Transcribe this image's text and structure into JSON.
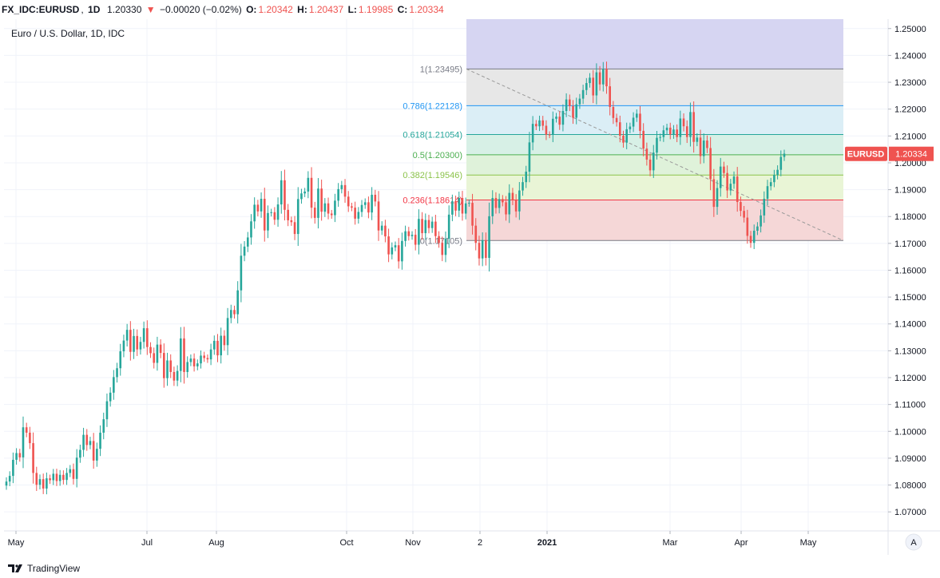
{
  "header": {
    "symbol": "FX_IDC:EURUSD",
    "interval": "1D",
    "last": "1.20330",
    "change_arrow": "▼",
    "change": "−0.00020 (−0.02%)",
    "o_label": "O:",
    "o_value": "1.20342",
    "h_label": "H:",
    "h_value": "1.20437",
    "l_label": "L:",
    "l_value": "1.19985",
    "c_label": "C:",
    "c_value": "1.20334"
  },
  "footer": {
    "brand": "TradingView"
  },
  "chart_data": {
    "type": "candlestick",
    "title": "Euro / U.S. Dollar, 1D, IDC",
    "ylim": [
      1.065,
      1.2535
    ],
    "y_ticks": [
      "1.25000",
      "1.24000",
      "1.23000",
      "1.22000",
      "1.21000",
      "1.20000",
      "1.19000",
      "1.18000",
      "1.17000",
      "1.16000",
      "1.15000",
      "1.14000",
      "1.13000",
      "1.12000",
      "1.11000",
      "1.10000",
      "1.09000",
      "1.08000",
      "1.07000"
    ],
    "x_ticks": [
      "May",
      "Jul",
      "Aug",
      "Oct",
      "Nov",
      "2",
      "2021",
      "Mar",
      "Apr",
      "May"
    ],
    "x_tick_bold": [
      "2021"
    ],
    "auto_scale_label": "A",
    "price_label": {
      "symbol": "EURUSD",
      "value": "1.20334",
      "price": 1.20334,
      "color": "#ef5350"
    },
    "colors": {
      "up": "#26a69a",
      "down": "#ef5350"
    },
    "fibonacci": {
      "top_band": {
        "from": 1.2535,
        "to": 1.23495,
        "color": "#d6d5f2"
      },
      "trend_line": {
        "from": 1.23495,
        "to": 1.17105
      },
      "levels": [
        {
          "ratio": "1",
          "value": 1.23495,
          "label": "1(1.23495)",
          "color": "#787b86",
          "fill": "#e7e7e7"
        },
        {
          "ratio": "0.786",
          "value": 1.22128,
          "label": "0.786(1.22128)",
          "color": "#2196f3",
          "fill": "#dbeef6"
        },
        {
          "ratio": "0.618",
          "value": 1.21054,
          "label": "0.618(1.21054)",
          "color": "#26a69a",
          "fill": "#d7f0e6"
        },
        {
          "ratio": "0.5",
          "value": 1.203,
          "label": "0.5(1.20300)",
          "color": "#4caf50",
          "fill": "#dff2da"
        },
        {
          "ratio": "0.382",
          "value": 1.19546,
          "label": "0.382(1.19546)",
          "color": "#8bc34a",
          "fill": "#e9f5d6"
        },
        {
          "ratio": "0.236",
          "value": 1.18614,
          "label": "0.236(1.18614)",
          "color": "#f23645",
          "fill": "#f5d7d7"
        },
        {
          "ratio": "0",
          "value": 1.17105,
          "label": "0(1.17105)",
          "color": "#787b86",
          "fill": null
        }
      ]
    },
    "series": [
      {
        "name": "EURUSD",
        "bodies": [
          1.0813,
          1.0834,
          1.0894,
          1.0919,
          1.0903,
          1.1015,
          1.0995,
          1.0956,
          1.0845,
          1.0801,
          1.0822,
          1.0787,
          1.0825,
          1.0818,
          1.0842,
          1.0815,
          1.0838,
          1.0819,
          1.0845,
          1.0859,
          1.0823,
          1.0902,
          1.0931,
          1.0987,
          1.0949,
          1.0964,
          1.0891,
          1.0935,
          1.0995,
          1.1045,
          1.1112,
          1.1144,
          1.1202,
          1.1235,
          1.1298,
          1.1338,
          1.1378,
          1.1296,
          1.1355,
          1.1305,
          1.1333,
          1.1384,
          1.1314,
          1.1291,
          1.1255,
          1.1323,
          1.1292,
          1.1198,
          1.1264,
          1.1221,
          1.1189,
          1.1225,
          1.1346,
          1.1221,
          1.1258,
          1.1271,
          1.1242,
          1.1253,
          1.1282,
          1.1273,
          1.1268,
          1.1305,
          1.1337,
          1.1283,
          1.1356,
          1.1321,
          1.1422,
          1.1452,
          1.1436,
          1.1525,
          1.1654,
          1.1688,
          1.1722,
          1.1782,
          1.1844,
          1.1819,
          1.1866,
          1.1748,
          1.1813,
          1.1816,
          1.1788,
          1.1845,
          1.1935,
          1.1825,
          1.1786,
          1.1779,
          1.1735,
          1.1865,
          1.1886,
          1.1893,
          1.1944,
          1.1833,
          1.1795,
          1.1904,
          1.1818,
          1.1849,
          1.1811,
          1.1805,
          1.1859,
          1.1902,
          1.1917,
          1.1874,
          1.1838,
          1.1833,
          1.1792,
          1.1817,
          1.1843,
          1.1853,
          1.1815,
          1.1881,
          1.1856,
          1.1748,
          1.1766,
          1.1726,
          1.1659,
          1.1685,
          1.1693,
          1.1633,
          1.1709,
          1.1745,
          1.1727,
          1.1732,
          1.1695,
          1.1791,
          1.1738,
          1.1787,
          1.1757,
          1.1781,
          1.1727,
          1.1702,
          1.1657,
          1.1717,
          1.1807,
          1.1857,
          1.1822,
          1.1869,
          1.1811,
          1.1849,
          1.1851,
          1.1766,
          1.1702,
          1.1644,
          1.1712,
          1.1646,
          1.1801,
          1.1869,
          1.1832,
          1.1865,
          1.1853,
          1.1808,
          1.1888,
          1.1861,
          1.1819,
          1.1897,
          1.1928,
          1.1967,
          1.2076,
          1.2145,
          1.2136,
          1.2158,
          1.2138,
          1.2105,
          1.2104,
          1.2164,
          1.2172,
          1.2142,
          1.2193,
          1.2236,
          1.2211,
          1.2168,
          1.2218,
          1.2239,
          1.2271,
          1.2297,
          1.2317,
          1.2251,
          1.2337,
          1.2292,
          1.2349,
          1.2285,
          1.2208,
          1.2167,
          1.2151,
          1.2101,
          1.2075,
          1.2125,
          1.2135,
          1.2168,
          1.2183,
          1.2119,
          1.2053,
          1.2012,
          1.1972,
          1.2038,
          1.2093,
          1.2096,
          1.2121,
          1.2131,
          1.2106,
          1.2124,
          1.2096,
          1.2165,
          1.2136,
          1.2096,
          1.2189,
          1.2078,
          1.2094,
          1.2025,
          1.2083,
          1.2055,
          1.1939,
          1.1836,
          1.1906,
          1.1986,
          1.1962,
          1.1897,
          1.1922,
          1.1949,
          1.1854,
          1.1821,
          1.1796,
          1.1728,
          1.1702,
          1.1747,
          1.1763,
          1.1804,
          1.1866,
          1.1913,
          1.1928,
          1.1955,
          1.1974,
          1.2022,
          1.2034
        ]
      }
    ]
  }
}
